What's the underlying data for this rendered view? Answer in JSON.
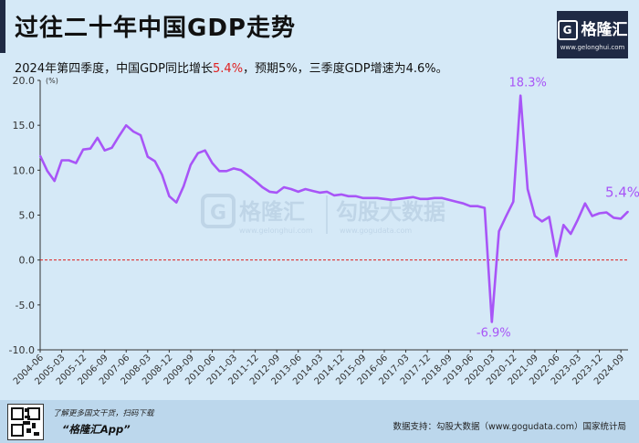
{
  "header": {
    "title": "过往二十年中国GDP走势",
    "subtitle_pre": "2024年第四季度，中国GDP同比增长",
    "subtitle_highlight": "5.4%",
    "subtitle_post": "，预期5%，三季度GDP增速为4.6%。"
  },
  "logo": {
    "name": "格隆汇",
    "url": "www.gelonghui.com"
  },
  "watermark": {
    "brand": "格隆汇",
    "brand_url": "www.gelonghui.com",
    "partner": "勾股大数据",
    "partner_url": "www.gogudata.com"
  },
  "footer": {
    "promo": "了解更多国文干货，扫码下载",
    "app": "“格隆汇App”",
    "source": "数据支持：勾股大数据（www.gogudata.com）国家统计局"
  },
  "colors": {
    "line": "#a855f7",
    "zero_line": "#e02020",
    "background": "#d5e9f7",
    "label": "#a855f7"
  },
  "chart_data": {
    "type": "line",
    "title": "过往二十年中国GDP走势",
    "ylabel": "(%)",
    "ylim": [
      -10,
      20
    ],
    "yticks": [
      "20.0",
      "15.0",
      "10.0",
      "5.0",
      "0.0",
      "-5.0",
      "-10.0"
    ],
    "ytick_values": [
      20,
      15,
      10,
      5,
      0,
      -5,
      -10
    ],
    "xticks": [
      "2004-06",
      "2005-03",
      "2005-12",
      "2006-09",
      "2007-06",
      "2008-03",
      "2008-12",
      "2009-09",
      "2010-06",
      "2011-03",
      "2011-12",
      "2012-09",
      "2013-06",
      "2014-03",
      "2014-12",
      "2015-09",
      "2016-06",
      "2017-03",
      "2017-12",
      "2018-09",
      "2019-06",
      "2020-03",
      "2020-12",
      "2021-09",
      "2022-06",
      "2023-03",
      "2023-12",
      "2024-09"
    ],
    "grid": false,
    "annotations": [
      {
        "label": "18.3%",
        "x": "2021-03",
        "y": 18.3
      },
      {
        "label": "-6.9%",
        "x": "2020-03",
        "y": -6.9
      },
      {
        "label": "5.4%",
        "x": "2024-12",
        "y": 5.4
      }
    ],
    "series": [
      {
        "x": [
          "2004-06",
          "2004-09",
          "2004-12",
          "2005-03",
          "2005-06",
          "2005-09",
          "2005-12",
          "2006-03",
          "2006-06",
          "2006-09",
          "2006-12",
          "2007-03",
          "2007-06",
          "2007-09",
          "2007-12",
          "2008-03",
          "2008-06",
          "2008-09",
          "2008-12",
          "2009-03",
          "2009-06",
          "2009-09",
          "2009-12",
          "2010-03",
          "2010-06",
          "2010-09",
          "2010-12",
          "2011-03",
          "2011-06",
          "2011-09",
          "2011-12",
          "2012-03",
          "2012-06",
          "2012-09",
          "2012-12",
          "2013-03",
          "2013-06",
          "2013-09",
          "2013-12",
          "2014-03",
          "2014-06",
          "2014-09",
          "2014-12",
          "2015-03",
          "2015-06",
          "2015-09",
          "2015-12",
          "2016-03",
          "2016-06",
          "2016-09",
          "2016-12",
          "2017-03",
          "2017-06",
          "2017-09",
          "2017-12",
          "2018-03",
          "2018-06",
          "2018-09",
          "2018-12",
          "2019-03",
          "2019-06",
          "2019-09",
          "2019-12",
          "2020-03",
          "2020-06",
          "2020-09",
          "2020-12",
          "2021-03",
          "2021-06",
          "2021-09",
          "2021-12",
          "2022-03",
          "2022-06",
          "2022-09",
          "2022-12",
          "2023-03",
          "2023-06",
          "2023-09",
          "2023-12",
          "2024-03",
          "2024-06",
          "2024-09",
          "2024-12"
        ],
        "values": [
          11.6,
          9.9,
          8.8,
          11.1,
          11.1,
          10.8,
          12.3,
          12.4,
          13.6,
          12.2,
          12.5,
          13.8,
          15.0,
          14.3,
          13.9,
          11.5,
          11.0,
          9.5,
          7.1,
          6.4,
          8.2,
          10.6,
          11.9,
          12.2,
          10.8,
          9.9,
          9.9,
          10.2,
          10.0,
          9.4,
          8.8,
          8.1,
          7.6,
          7.5,
          8.1,
          7.9,
          7.6,
          7.9,
          7.7,
          7.5,
          7.6,
          7.2,
          7.3,
          7.1,
          7.1,
          6.9,
          6.9,
          6.9,
          6.8,
          6.7,
          6.8,
          6.9,
          7.0,
          6.8,
          6.8,
          6.9,
          6.9,
          6.7,
          6.5,
          6.3,
          6.0,
          6.0,
          5.8,
          -6.9,
          3.2,
          4.9,
          6.5,
          18.3,
          7.9,
          4.9,
          4.3,
          4.8,
          0.4,
          3.9,
          2.9,
          4.5,
          6.3,
          4.9,
          5.2,
          5.3,
          4.7,
          4.6,
          5.4
        ]
      }
    ]
  }
}
